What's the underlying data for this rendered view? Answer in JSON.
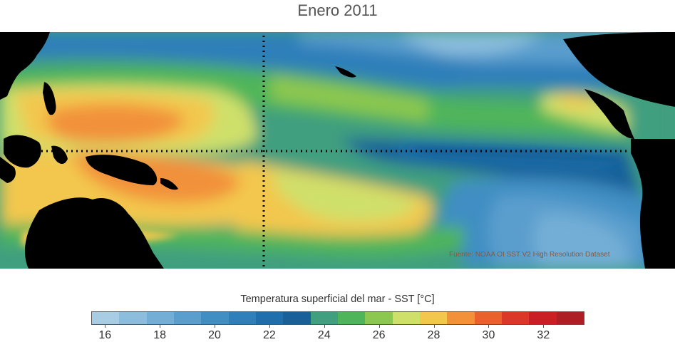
{
  "title": "Enero 2011",
  "source_note": "Fuente: NOAA OI SST V2 High Resolution Dataset",
  "colorbar": {
    "label": "Temperatura superficial del mar - SST  [°C]",
    "colors": [
      "#a7cce4",
      "#8cbddd",
      "#73aed6",
      "#5a9ecd",
      "#418ec3",
      "#2f7fba",
      "#1f6fac",
      "#17609a",
      "#3f9f7f",
      "#4fb55a",
      "#8cc74f",
      "#cfe06a",
      "#f3c74e",
      "#f2913a",
      "#e9622b",
      "#dc3828",
      "#cb1f26",
      "#ad1f24"
    ],
    "ticks": [
      "16",
      "18",
      "20",
      "22",
      "24",
      "26",
      "28",
      "30",
      "32"
    ]
  }
}
